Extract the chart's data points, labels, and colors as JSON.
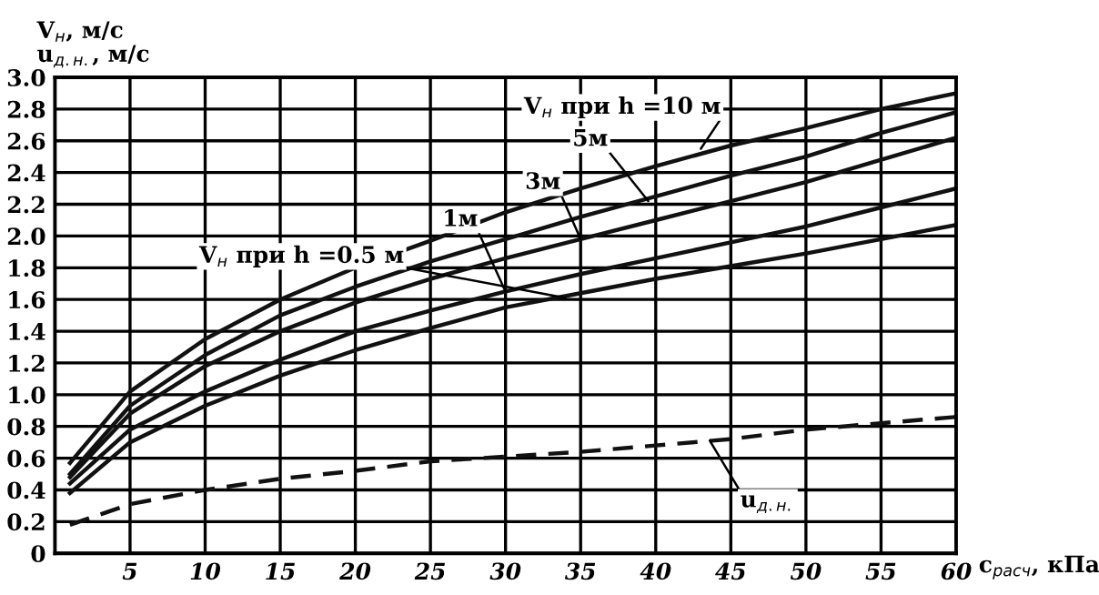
{
  "chart_data": {
    "type": "line",
    "xlabel": "c$_{расч}$, кПа",
    "ylabel": "V$_{н}$, м/с\nu$_{д.н.}$, м/с",
    "x": [
      1,
      5,
      10,
      15,
      20,
      25,
      30,
      35,
      40,
      45,
      50,
      55,
      60
    ],
    "series": [
      {
        "color": "#111111",
        "line_style": "solid",
        "values": [
          0.57,
          1.02,
          1.35,
          1.6,
          1.8,
          1.97,
          2.15,
          2.3,
          2.44,
          2.57,
          2.68,
          2.8,
          2.9
        ]
      },
      {
        "color": "#111111",
        "line_style": "solid",
        "values": [
          0.5,
          0.93,
          1.25,
          1.5,
          1.68,
          1.84,
          1.98,
          2.12,
          2.25,
          2.38,
          2.5,
          2.65,
          2.78
        ]
      },
      {
        "color": "#111111",
        "line_style": "solid",
        "values": [
          0.48,
          0.88,
          1.18,
          1.4,
          1.58,
          1.73,
          1.86,
          1.98,
          2.1,
          2.22,
          2.34,
          2.48,
          2.62
        ]
      },
      {
        "color": "#111111",
        "line_style": "solid",
        "values": [
          0.44,
          0.78,
          1.02,
          1.22,
          1.4,
          1.53,
          1.65,
          1.76,
          1.86,
          1.96,
          2.06,
          2.18,
          2.3
        ]
      },
      {
        "color": "#111111",
        "line_style": "solid",
        "values": [
          0.38,
          0.7,
          0.93,
          1.12,
          1.28,
          1.42,
          1.55,
          1.64,
          1.73,
          1.81,
          1.89,
          1.98,
          2.07
        ]
      },
      {
        "color": "#111111",
        "line_style": "dashed",
        "values": [
          0.18,
          0.31,
          0.4,
          0.47,
          0.52,
          0.58,
          0.61,
          0.64,
          0.68,
          0.72,
          0.78,
          0.82,
          0.86
        ]
      }
    ],
    "xlim": [
      0,
      60
    ],
    "xticks": [
      5,
      10,
      15,
      20,
      25,
      30,
      35,
      40,
      45,
      50,
      55,
      60
    ],
    "ylim": [
      0,
      3.0
    ],
    "yticks": [
      0,
      0.2,
      0.4,
      0.6,
      0.8,
      {
        "value": 1.0,
        "label": "1.0"
      },
      1.2,
      1.4,
      1.6,
      1.8,
      {
        "value": 2.0,
        "label": "2.0"
      },
      2.2,
      2.4,
      2.6,
      2.8,
      {
        "value": 3.0,
        "label": "3.0"
      }
    ],
    "grid": true,
    "legend": false,
    "marker": "none",
    "annotations": [
      {
        "text": "V$_{н}$ при h =10 м",
        "x": 43,
        "y": 2.55
      },
      {
        "text": "5м",
        "x": 39.5,
        "y": 2.22
      },
      {
        "text": "3м",
        "x": 35,
        "y": 1.98
      },
      {
        "text": "1м",
        "x": 30,
        "y": 1.65
      },
      {
        "text": "V$_{н}$ при h =0.5 м",
        "x": 34,
        "y": 1.61
      },
      {
        "text": "u$_{д.н.}$",
        "x": 43.6,
        "y": 0.71
      }
    ]
  }
}
